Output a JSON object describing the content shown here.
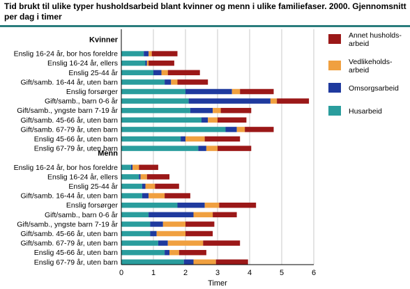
{
  "title": "Tid brukt til ulike typer husholdsarbeid blant kvinner og menn i ulike familiefaser. 2000. Gjennomsnitt per dag i timer",
  "chart_data": {
    "type": "bar",
    "orientation": "horizontal",
    "stacked": true,
    "xlabel": "Timer",
    "ylabel": "",
    "xlim": [
      0,
      6
    ],
    "xticks": [
      "0",
      "1",
      "2",
      "3",
      "4",
      "5",
      "6"
    ],
    "grid": "vertical",
    "legend_position": "right",
    "groups": [
      "Kvinner",
      "Menn"
    ],
    "categories": [
      "Enslig 16-24 år, bor hos foreldre",
      "Enslig 16-24 år, ellers",
      "Enslig 25-44 år",
      "Gift/samb. 16-44 år, uten barn",
      "Enslig forsørger",
      "Gift/samb., barn 0-6 år",
      "Gift/samb., yngste barn 7-19 år",
      "Gift/samb. 45-66 år, uten barn",
      "Gift/samb. 67-79 år, uten barn",
      "Enslig 45-66 år, uten barn",
      "Enslig 67-79 år, uten barn"
    ],
    "series": [
      {
        "name": "Husarbeid",
        "color": "#2a9d9d",
        "values": {
          "Kvinner": [
            0.7,
            0.75,
            1.0,
            1.35,
            2.0,
            2.1,
            2.15,
            2.5,
            3.25,
            1.85,
            2.4
          ],
          "Menn": [
            0.3,
            0.55,
            0.65,
            0.65,
            1.75,
            0.85,
            0.9,
            0.9,
            1.15,
            1.35,
            1.95
          ]
        }
      },
      {
        "name": "Omsorgsarbeid",
        "color": "#1f3a9e",
        "values": {
          "Kvinner": [
            0.15,
            0.05,
            0.25,
            0.2,
            1.45,
            2.55,
            0.7,
            0.2,
            0.35,
            0.15,
            0.25
          ],
          "Menn": [
            0.05,
            0.05,
            0.1,
            0.2,
            0.85,
            1.4,
            0.4,
            0.2,
            0.3,
            0.15,
            0.3
          ]
        }
      },
      {
        "name": "Vedlikeholdsarbeid",
        "color": "#f0a040",
        "values": {
          "Kvinner": [
            0.1,
            0.05,
            0.2,
            0.2,
            0.25,
            0.2,
            0.25,
            0.3,
            0.25,
            0.6,
            0.35
          ],
          "Menn": [
            0.2,
            0.2,
            0.3,
            0.5,
            0.45,
            0.6,
            0.7,
            0.9,
            1.1,
            0.3,
            0.7
          ]
        }
      },
      {
        "name": "Annet husholdsarbeid",
        "color": "#9b1818",
        "values": {
          "Kvinner": [
            0.8,
            0.8,
            1.0,
            0.95,
            1.05,
            1.0,
            0.95,
            0.9,
            0.9,
            1.1,
            1.05
          ],
          "Menn": [
            0.6,
            0.7,
            0.75,
            0.8,
            1.15,
            0.75,
            0.9,
            0.85,
            1.15,
            0.85,
            1.0
          ]
        }
      }
    ],
    "legend_labels": [
      [
        "Annet husholds-",
        "arbeid"
      ],
      [
        "Vedlikeholds-",
        "arbeid"
      ],
      [
        "Omsorgsarbeid"
      ],
      [
        "Husarbeid"
      ]
    ]
  }
}
